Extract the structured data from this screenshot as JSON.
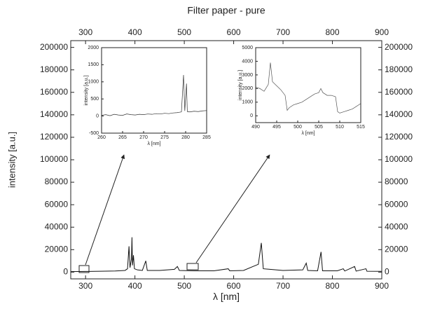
{
  "chart_data": [
    {
      "type": "line",
      "title": "Filter paper - pure",
      "xlabel": "λ [nm]",
      "ylabel": "intensity [a.u.]",
      "xlim": [
        270,
        900
      ],
      "ylim": [
        -6000,
        206000
      ],
      "xticks": [
        300,
        400,
        500,
        600,
        700,
        800,
        900
      ],
      "yticks": [
        0,
        20000,
        40000,
        60000,
        80000,
        100000,
        120000,
        140000,
        160000,
        180000,
        200000
      ],
      "x": [
        270,
        300,
        330,
        360,
        380,
        385,
        388,
        390,
        393,
        394,
        395,
        397,
        399,
        405,
        415,
        422,
        425,
        450,
        480,
        486,
        490,
        520,
        560,
        589,
        592,
        620,
        650,
        656,
        660,
        700,
        740,
        747,
        750,
        770,
        777,
        780,
        810,
        822,
        825,
        845,
        848,
        868,
        870,
        900
      ],
      "series": [
        {
          "color": "#111111",
          "values": [
            500,
            600,
            800,
            1000,
            1500,
            3000,
            23000,
            4000,
            12000,
            31000,
            6000,
            15000,
            3000,
            2000,
            1500,
            10000,
            1500,
            1500,
            2500,
            5000,
            1500,
            1200,
            1200,
            3000,
            1200,
            1500,
            7000,
            26000,
            3000,
            1500,
            2000,
            8000,
            1500,
            1200,
            18000,
            1200,
            1200,
            3000,
            1000,
            5000,
            900,
            3000,
            800,
            700
          ]
        }
      ]
    },
    {
      "type": "line",
      "xlabel": "λ [nm]",
      "ylabel": "intensity [a.u.]",
      "xlim": [
        260,
        285
      ],
      "ylim": [
        -500,
        2000
      ],
      "xticks": [
        260,
        265,
        270,
        275,
        280,
        285
      ],
      "yticks": [
        -500,
        0,
        500,
        1000,
        1500,
        2000
      ],
      "x": [
        260,
        261,
        262,
        263,
        264,
        265,
        266,
        267,
        268,
        269,
        270,
        271,
        272,
        273,
        274,
        275,
        276,
        277,
        278,
        279,
        279.5,
        279.8,
        280.2,
        280.4,
        281,
        282,
        283,
        284,
        285
      ],
      "series": [
        {
          "color": "#333333",
          "values": [
            20,
            40,
            10,
            50,
            30,
            20,
            60,
            40,
            30,
            50,
            40,
            60,
            50,
            70,
            60,
            80,
            70,
            90,
            100,
            120,
            1200,
            150,
            950,
            130,
            120,
            140,
            130,
            150,
            160
          ]
        }
      ]
    },
    {
      "type": "line",
      "xlabel": "λ [nm]",
      "ylabel": "intensity [a.u.]",
      "xlim": [
        490,
        515
      ],
      "ylim": [
        -500,
        5000
      ],
      "xticks": [
        490,
        495,
        500,
        505,
        510,
        515
      ],
      "yticks": [
        0,
        1000,
        2000,
        3000,
        4000,
        5000
      ],
      "x": [
        490,
        491,
        492,
        493,
        493.5,
        494,
        495,
        496,
        497,
        497.5,
        498,
        499,
        500,
        501,
        502,
        503,
        504,
        505,
        505.5,
        506,
        507,
        508,
        509,
        509.5,
        510,
        511,
        512,
        513,
        514,
        515
      ],
      "series": [
        {
          "color": "#555555",
          "values": [
            2100,
            2000,
            1800,
            2300,
            3900,
            2500,
            2200,
            1900,
            1500,
            400,
            600,
            800,
            900,
            1000,
            1200,
            1400,
            1600,
            1700,
            2000,
            1700,
            1500,
            1500,
            1400,
            300,
            200,
            300,
            400,
            500,
            700,
            900
          ]
        }
      ]
    }
  ]
}
